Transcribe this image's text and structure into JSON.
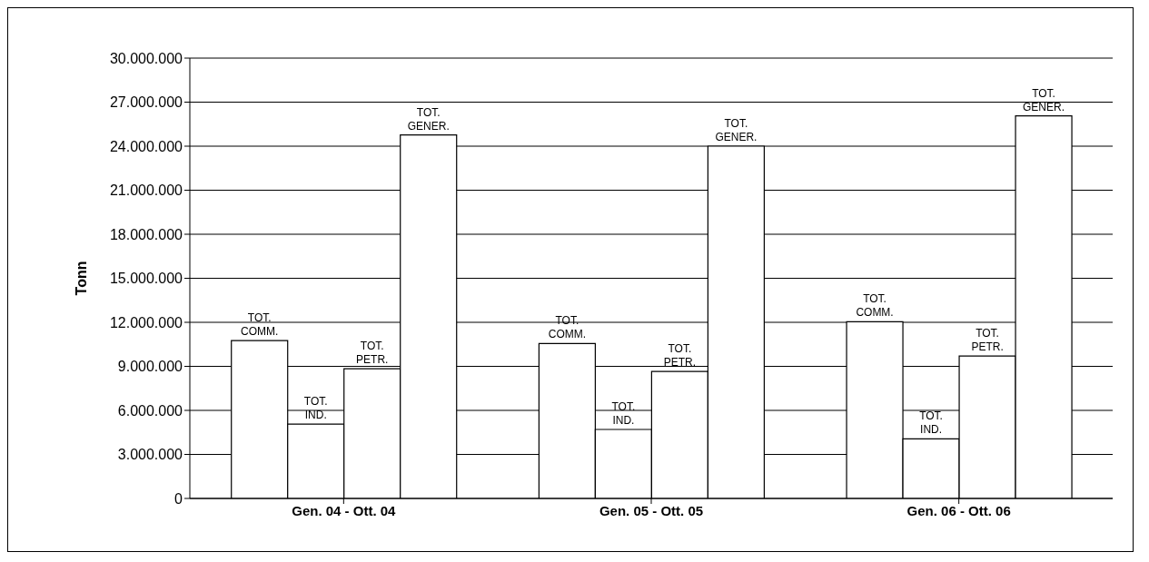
{
  "chart_data": {
    "type": "bar",
    "ylabel": "Tonn",
    "categories": [
      "Gen. 04 - Ott. 04",
      "Gen. 05 - Ott. 05",
      "Gen. 06 - Ott. 06"
    ],
    "series": [
      {
        "name": "TOT. COMM.",
        "color": "#ffffff",
        "values": [
          10750000,
          10560000,
          12040000
        ]
      },
      {
        "name": "TOT. IND.",
        "color": "#ffffff",
        "values": [
          5070000,
          4700000,
          4060000
        ]
      },
      {
        "name": "TOT. PETR.",
        "color": "#ffffff",
        "values": [
          8840000,
          8650000,
          9700000
        ]
      },
      {
        "name": "TOT. GENER.",
        "color": "#ffffff",
        "values": [
          24770000,
          24000000,
          26060000
        ]
      }
    ],
    "ylim": [
      0,
      30000000
    ],
    "yticks": [
      {
        "value": 0,
        "label": "0"
      },
      {
        "value": 3000000,
        "label": "3.000.000"
      },
      {
        "value": 6000000,
        "label": "6.000.000"
      },
      {
        "value": 9000000,
        "label": "9.000.000"
      },
      {
        "value": 12000000,
        "label": "12.000.000"
      },
      {
        "value": 15000000,
        "label": "15.000.000"
      },
      {
        "value": 18000000,
        "label": "18.000.000"
      },
      {
        "value": 21000000,
        "label": "21.000.000"
      },
      {
        "value": 24000000,
        "label": "24.000.000"
      },
      {
        "value": 27000000,
        "label": "27.000.000"
      },
      {
        "value": 30000000,
        "label": "30.000.000"
      }
    ],
    "grid": "y",
    "legend": false
  }
}
